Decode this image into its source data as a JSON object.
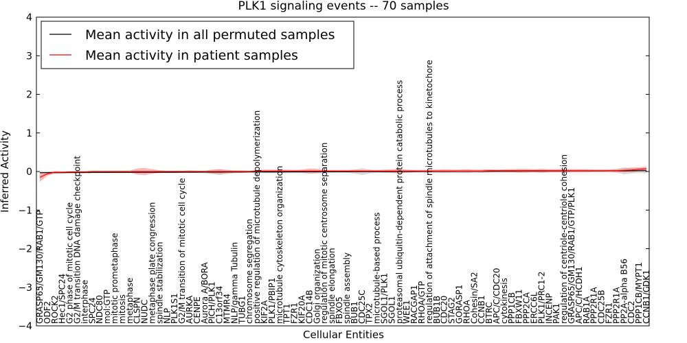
{
  "chart_data": {
    "type": "line",
    "title": "PLK1 signaling events -- 70 samples",
    "xlabel": "Cellular Entities",
    "ylabel": "Inferred Activity",
    "ylim": [
      -4,
      4
    ],
    "yticks": [
      -4,
      -3,
      -2,
      -1,
      0,
      1,
      2,
      3,
      4
    ],
    "legend_position": "top-left",
    "categories": [
      "GRASP65/GM130/RAB1/GTP",
      "ODF2",
      "ROCK2",
      "Hec1/SPC24",
      "G2 phase of mitotic cell cycle",
      "G2/M transition DNA damage checkpoint",
      "interphase",
      "SPC24",
      "NDC80",
      "mol:GTP",
      "mitotic prometaphase",
      "mitosis",
      "metaphase",
      "CLSPN",
      "NUDC",
      "metaphase plate congression",
      "spindle stabilization",
      "NLP",
      "PLK1S1",
      "G2/M transition of mitotic cell cycle",
      "AURKA",
      "CENPE",
      "Aurora A/BORA",
      "PICH/PLK1",
      "C13orf34",
      "MTMR4",
      "NLP/gamma Tubulin",
      "TUBG1",
      "chromosome segregation",
      "positive regulation of microtubule depolymerization",
      "KIF2A",
      "PLK1/PBIP1",
      "microtubule cytoskeleton organization",
      "TPT1",
      "FZR1",
      "KIF20A",
      "CDC14B",
      "Golgi organization",
      "regulation of mitotic centrosome separation",
      "spindle elongation",
      "FBXO5",
      "spindle assembly",
      "BUB1",
      "CDC25C",
      "TPX2",
      "microtubule-based process",
      "SGOL1/PLK1",
      "SGOL1",
      "proteasomal ubiquitin-dependent protein catabolic process",
      "WEE1",
      "RACGAP1",
      "RHOA/GTP",
      "regulation of attachment of spindle microtubules to kinetochore",
      "BUB1B",
      "CDC20",
      "STAG2",
      "GORASP1",
      "RHOA",
      "Cohesin/SA2",
      "CCNB1",
      "BTRC",
      "APC/C/CDC20",
      "cytokinesis",
      "PPP1CB",
      "FBXW11",
      "PPP2CA",
      "ERCC6L",
      "PLK1/PRC1-2",
      "INCENP",
      "PAK1",
      "regulation of centriole-centriole cohesion",
      "GRASP65/GM130/RAB1/GTP/PLK1",
      "APC/C/HCDH1",
      "RAB1A",
      "PPP2R1A",
      "CDC25B",
      "FZR1",
      "PPP2R1A",
      "PP2A-alpha B56",
      "CDC2",
      "PPP1CB/MYPT1",
      "CCNB1/CDK1"
    ],
    "series": [
      {
        "name": "Mean activity in all permuted samples",
        "color": "#000000",
        "y_start": -0.03,
        "y_end": 0.02
      },
      {
        "name": "Mean activity in patient samples",
        "color": "#ff0000",
        "values": [
          -0.15,
          -0.06,
          -0.02,
          -0.02,
          -0.01,
          -0.01,
          -0.01,
          0.0,
          0.0,
          0.0,
          0.0,
          0.0,
          0.0,
          0.0,
          0.0,
          0.0,
          0.0,
          0.0,
          0.0,
          0.0,
          0.0,
          0.0,
          0.0,
          0.0,
          0.0,
          0.0,
          0.0,
          0.0,
          0.0,
          0.01,
          0.01,
          0.01,
          0.01,
          0.01,
          0.01,
          0.01,
          0.01,
          0.01,
          0.01,
          0.01,
          0.01,
          0.01,
          0.01,
          0.01,
          0.01,
          0.01,
          0.01,
          0.01,
          0.01,
          0.01,
          0.01,
          0.01,
          0.01,
          0.01,
          0.01,
          0.01,
          0.01,
          0.01,
          0.01,
          0.01,
          0.02,
          0.02,
          0.02,
          0.02,
          0.02,
          0.02,
          0.02,
          0.02,
          0.02,
          0.02,
          0.02,
          0.02,
          0.02,
          0.02,
          0.02,
          0.02,
          0.02,
          0.02,
          0.03,
          0.04,
          0.06,
          0.07
        ],
        "band_half_width": [
          0.12,
          0.05,
          0.03,
          0.02,
          0.02,
          0.02,
          0.02,
          0.02,
          0.02,
          0.02,
          0.02,
          0.02,
          0.02,
          0.08,
          0.09,
          0.06,
          0.03,
          0.02,
          0.02,
          0.02,
          0.03,
          0.02,
          0.02,
          0.05,
          0.06,
          0.04,
          0.03,
          0.03,
          0.02,
          0.03,
          0.04,
          0.04,
          0.04,
          0.04,
          0.03,
          0.04,
          0.07,
          0.06,
          0.03,
          0.03,
          0.03,
          0.03,
          0.04,
          0.03,
          0.03,
          0.03,
          0.04,
          0.05,
          0.06,
          0.04,
          0.03,
          0.03,
          0.04,
          0.04,
          0.05,
          0.04,
          0.04,
          0.05,
          0.04,
          0.04,
          0.04,
          0.03,
          0.04,
          0.04,
          0.05,
          0.05,
          0.04,
          0.05,
          0.04,
          0.04,
          0.05,
          0.04,
          0.04,
          0.04,
          0.03,
          0.03,
          0.03,
          0.04,
          0.05,
          0.06,
          0.05,
          0.06
        ]
      }
    ],
    "permuted_band_half_width": [
      0.04,
      0.03,
      0.03,
      0.03,
      0.02,
      0.02,
      0.02,
      0.02,
      0.02,
      0.02,
      0.02,
      0.02,
      0.02,
      0.02,
      0.02,
      0.02,
      0.02,
      0.02,
      0.02,
      0.02,
      0.02,
      0.02,
      0.03,
      0.05,
      0.08,
      0.05,
      0.03,
      0.02,
      0.02,
      0.02,
      0.03,
      0.03,
      0.03,
      0.03,
      0.03,
      0.03,
      0.03,
      0.03,
      0.03,
      0.03,
      0.03,
      0.03,
      0.05,
      0.09,
      0.05,
      0.03,
      0.03,
      0.03,
      0.04,
      0.03,
      0.03,
      0.03,
      0.03,
      0.03,
      0.03,
      0.03,
      0.04,
      0.04,
      0.03,
      0.04,
      0.04,
      0.04,
      0.04,
      0.04,
      0.04,
      0.04,
      0.04,
      0.05,
      0.04,
      0.04,
      0.04,
      0.04,
      0.04,
      0.04,
      0.04,
      0.04,
      0.04,
      0.05,
      0.09,
      0.07,
      0.06,
      0.07
    ],
    "colors": {
      "permuted_band": "#b0b0b0",
      "patient_band": "#f08080",
      "axes": "#000000",
      "background": "#ffffff"
    }
  }
}
